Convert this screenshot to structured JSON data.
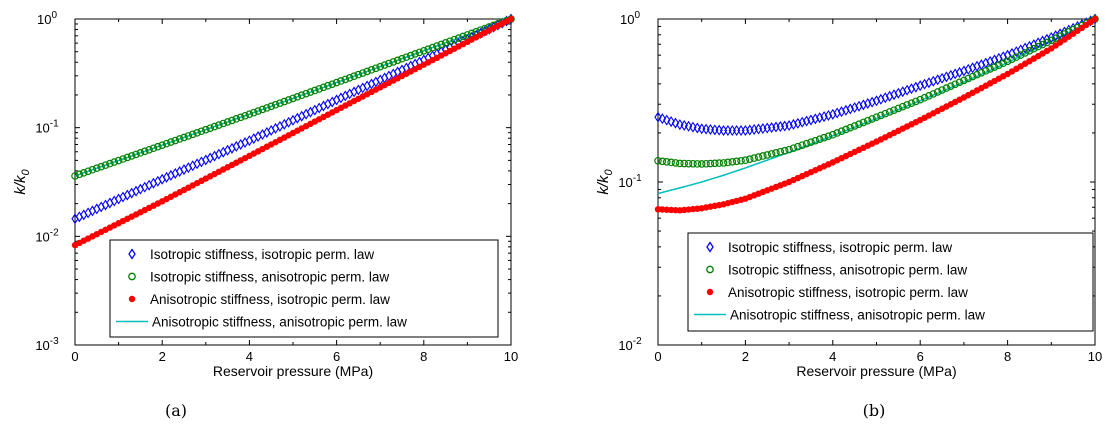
{
  "chart_data": [
    {
      "type": "scatter",
      "panel_caption": "(a)",
      "xlabel": "Reservoir pressure (MPa)",
      "ylabel": "k/k",
      "ylabel_sub": "0",
      "xlim": [
        0,
        10
      ],
      "ylim": [
        0.001,
        1
      ],
      "yscale": "log",
      "xticks": [
        "0",
        "2",
        "4",
        "6",
        "8",
        "10"
      ],
      "yticks": [
        {
          "base": "10",
          "exp": "-3"
        },
        {
          "base": "10",
          "exp": "-2"
        },
        {
          "base": "10",
          "exp": "-1"
        },
        {
          "base": "10",
          "exp": "0"
        }
      ],
      "legend_position": "bottom-right",
      "series": [
        {
          "name": "Isotropic stiffness, isotropic perm. law",
          "marker": "diamond",
          "color": "#0000ff",
          "x": [
            0,
            2,
            4,
            6,
            8,
            10
          ],
          "y": [
            0.0145,
            0.0335,
            0.076,
            0.18,
            0.42,
            1.0
          ]
        },
        {
          "name": "Isotropic stiffness, anisotropic perm. law",
          "marker": "circle",
          "color": "#008000",
          "x": [
            0,
            2,
            4,
            6,
            8,
            10
          ],
          "y": [
            0.036,
            0.069,
            0.133,
            0.26,
            0.51,
            1.0
          ]
        },
        {
          "name": "Anisotropic stiffness, isotropic perm. law",
          "marker": "dot",
          "color": "#ff0000",
          "x": [
            0,
            2,
            4,
            6,
            8,
            10
          ],
          "y": [
            0.0083,
            0.021,
            0.055,
            0.145,
            0.38,
            1.0
          ]
        },
        {
          "name": "Anisotropic stiffness, anisotropic perm. law",
          "marker": "line",
          "color": "#00bfbf",
          "x": [
            0,
            2,
            4,
            6,
            8,
            10
          ],
          "y": [
            0.036,
            0.069,
            0.133,
            0.26,
            0.51,
            1.0
          ]
        }
      ]
    },
    {
      "type": "scatter",
      "panel_caption": "(b)",
      "xlabel": "Reservoir pressure (MPa)",
      "ylabel": "k/k",
      "ylabel_sub": "0",
      "xlim": [
        0,
        10
      ],
      "ylim": [
        0.01,
        1
      ],
      "yscale": "log",
      "xticks": [
        "0",
        "2",
        "4",
        "6",
        "8",
        "10"
      ],
      "yticks": [
        {
          "base": "10",
          "exp": "-2"
        },
        {
          "base": "10",
          "exp": "-1"
        },
        {
          "base": "10",
          "exp": "0"
        }
      ],
      "legend_position": "bottom-right",
      "series": [
        {
          "name": "Isotropic stiffness, isotropic perm. law",
          "marker": "diamond",
          "color": "#0000ff",
          "x": [
            0,
            0.5,
            1,
            1.5,
            2,
            3,
            4,
            5,
            6,
            7,
            8,
            9,
            10
          ],
          "y": [
            0.25,
            0.225,
            0.212,
            0.207,
            0.207,
            0.222,
            0.26,
            0.315,
            0.39,
            0.48,
            0.6,
            0.77,
            1.0
          ]
        },
        {
          "name": "Isotropic stiffness, anisotropic perm. law",
          "marker": "circle",
          "color": "#008000",
          "x": [
            0,
            0.5,
            1,
            1.5,
            2,
            3,
            4,
            5,
            6,
            7,
            8,
            9,
            10
          ],
          "y": [
            0.135,
            0.13,
            0.129,
            0.131,
            0.136,
            0.158,
            0.195,
            0.25,
            0.32,
            0.42,
            0.55,
            0.74,
            1.0
          ]
        },
        {
          "name": "Anisotropic stiffness, isotropic perm. law",
          "marker": "dot",
          "color": "#ff0000",
          "x": [
            0,
            0.5,
            1,
            1.5,
            2,
            3,
            4,
            5,
            6,
            7,
            8,
            9,
            10
          ],
          "y": [
            0.068,
            0.067,
            0.069,
            0.073,
            0.079,
            0.1,
            0.132,
            0.177,
            0.24,
            0.33,
            0.46,
            0.66,
            1.0
          ]
        },
        {
          "name": "Anisotropic stiffness, anisotropic perm. law",
          "marker": "line",
          "color": "#00bfbf",
          "x": [
            0,
            0.5,
            1,
            1.5,
            2,
            3,
            4,
            5,
            6,
            7,
            8,
            9,
            10
          ],
          "y": [
            0.085,
            0.092,
            0.1,
            0.11,
            0.122,
            0.152,
            0.192,
            0.245,
            0.315,
            0.41,
            0.54,
            0.73,
            1.0
          ]
        }
      ]
    }
  ]
}
